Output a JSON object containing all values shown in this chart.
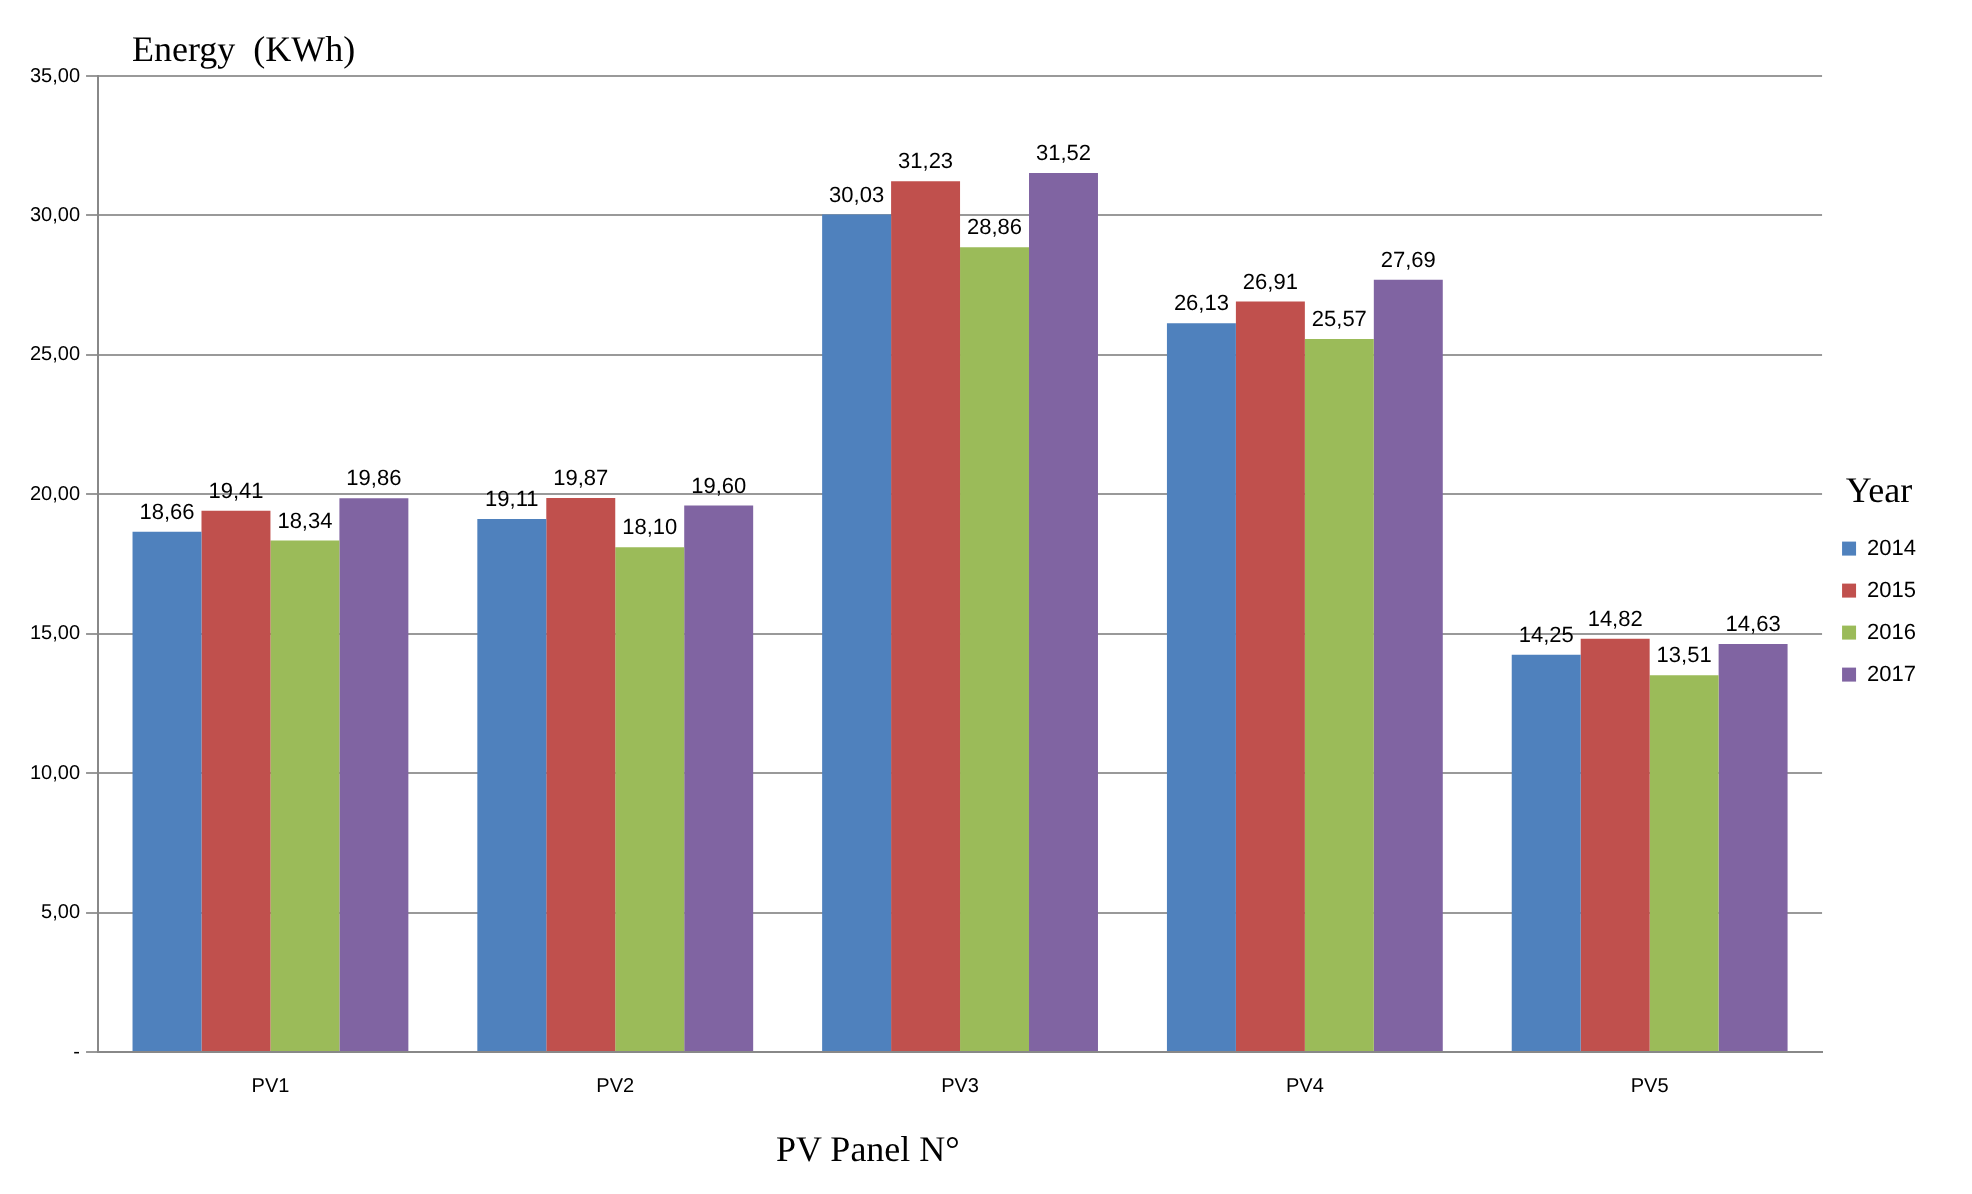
{
  "chart_data": {
    "type": "bar",
    "ylabel": "Energy  (KWh)",
    "xlabel": "PV Panel N°",
    "legend_title": "Year",
    "legend": "right",
    "grid": "y",
    "categories": [
      "PV1",
      "PV2",
      "PV3",
      "PV4",
      "PV5"
    ],
    "ylim": [
      0,
      35
    ],
    "yticks": [
      {
        "value": 0,
        "label": "-"
      },
      {
        "value": 5,
        "label": "5,00"
      },
      {
        "value": 10,
        "label": "10,00"
      },
      {
        "value": 15,
        "label": "15,00"
      },
      {
        "value": 20,
        "label": "20,00"
      },
      {
        "value": 25,
        "label": "25,00"
      },
      {
        "value": 30,
        "label": "30,00"
      },
      {
        "value": 35,
        "label": "35,00"
      }
    ],
    "series": [
      {
        "name": "2014",
        "color": "#4f81bd",
        "values": [
          18.66,
          19.11,
          30.03,
          26.13,
          14.25
        ],
        "value_labels": [
          "18,66",
          "19,11",
          "30,03",
          "26,13",
          "14,25"
        ]
      },
      {
        "name": "2015",
        "color": "#c0504d",
        "values": [
          19.41,
          19.87,
          31.23,
          26.91,
          14.82
        ],
        "value_labels": [
          "19,41",
          "19,87",
          "31,23",
          "26,91",
          "14,82"
        ]
      },
      {
        "name": "2016",
        "color": "#9bbb59",
        "values": [
          18.34,
          18.1,
          28.86,
          25.57,
          13.51
        ],
        "value_labels": [
          "18,34",
          "18,10",
          "28,86",
          "25,57",
          "13,51"
        ]
      },
      {
        "name": "2017",
        "color": "#8064a2",
        "values": [
          19.86,
          19.6,
          31.52,
          27.69,
          14.63
        ],
        "value_labels": [
          "19,86",
          "19,60",
          "31,52",
          "27,69",
          "14,63"
        ]
      }
    ]
  }
}
